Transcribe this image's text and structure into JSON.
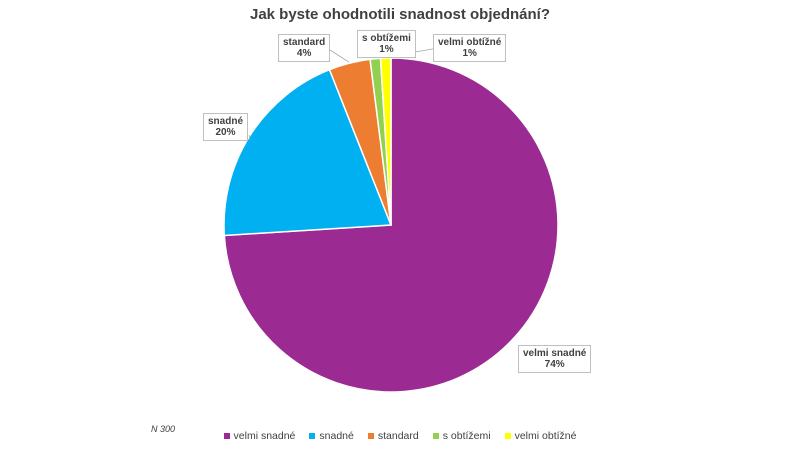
{
  "chart_data": {
    "type": "pie",
    "title": "Jak byste ohodnotili snadnost objednání?",
    "categories": [
      "velmi snadné",
      "snadné",
      "standard",
      "s obtížemi",
      "velmi obtížné"
    ],
    "values": [
      74,
      20,
      4,
      1,
      1
    ],
    "value_labels": [
      "74%",
      "20%",
      "4%",
      "1%",
      "1%"
    ],
    "colors": [
      "#9b2a93",
      "#00b0f0",
      "#ed7d31",
      "#92d050",
      "#ffff00"
    ],
    "legend_position": "bottom",
    "note": "N 300"
  }
}
